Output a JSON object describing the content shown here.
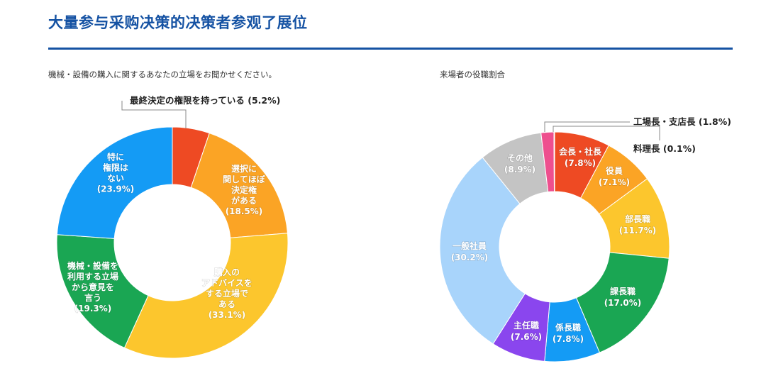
{
  "header": {
    "title": "大量参与采购决策的决策者参观了展位"
  },
  "chart_data": [
    {
      "type": "pie",
      "title": "機械・設備の購入に関するあなたの立場をお聞かせください。",
      "slices": [
        {
          "label": "最終決定の権限を持っている",
          "value": 5.2,
          "value_text": "(5.2%)",
          "label_lines": [
            "最終決定の権限を持っている (5.2%)"
          ],
          "color": "#ee4a23",
          "callout": true
        },
        {
          "label": "選択に関してほぼ決定権がある",
          "value": 18.5,
          "value_text": "(18.5%)",
          "label_lines": [
            "選択に",
            "関してほぼ",
            "決定権",
            "がある",
            "(18.5%)"
          ],
          "color": "#fba425"
        },
        {
          "label": "購入のアドバイスをする立場である",
          "value": 33.1,
          "value_text": "(33.1%)",
          "label_lines": [
            "購入の",
            "アドバイスを",
            "する立場で",
            "ある",
            "(33.1%)"
          ],
          "color": "#fcc62d"
        },
        {
          "label": "機械・設備を利用する立場から意見を言う",
          "value": 19.3,
          "value_text": "(19.3%)",
          "label_lines": [
            "機械・設備を",
            "利用する立場",
            "から意見を",
            "言う",
            "(19.3%)"
          ],
          "color": "#1aa653"
        },
        {
          "label": "特に権限はない",
          "value": 23.9,
          "value_text": "(23.9%)",
          "label_lines": [
            "特に",
            "権限は",
            "ない",
            "(23.9%)"
          ],
          "color": "#149bf5"
        }
      ]
    },
    {
      "type": "pie",
      "title": "来場者の役職割合",
      "slices": [
        {
          "label": "会長・社長",
          "value": 7.8,
          "value_text": "(7.8%)",
          "label_lines": [
            "会長・社長",
            "(7.8%)"
          ],
          "color": "#ee4a23"
        },
        {
          "label": "役員",
          "value": 7.1,
          "value_text": "(7.1%)",
          "label_lines": [
            "役員",
            "(7.1%)"
          ],
          "color": "#fba425"
        },
        {
          "label": "部長職",
          "value": 11.7,
          "value_text": "(11.7%)",
          "label_lines": [
            "部長職",
            "(11.7%)"
          ],
          "color": "#fcc62d"
        },
        {
          "label": "課長職",
          "value": 17.0,
          "value_text": "(17.0%)",
          "label_lines": [
            "課長職",
            "(17.0%)"
          ],
          "color": "#1aa653"
        },
        {
          "label": "係長職",
          "value": 7.8,
          "value_text": "(7.8%)",
          "label_lines": [
            "係長職",
            "(7.8%)"
          ],
          "color": "#149bf5"
        },
        {
          "label": "主任職",
          "value": 7.6,
          "value_text": "(7.6%)",
          "label_lines": [
            "主任職",
            "(7.6%)"
          ],
          "color": "#8a46ee"
        },
        {
          "label": "一般社員",
          "value": 30.2,
          "value_text": "(30.2%)",
          "label_lines": [
            "一般社員",
            "(30.2%)"
          ],
          "color": "#a8d4fb"
        },
        {
          "label": "その他",
          "value": 8.9,
          "value_text": "(8.9%)",
          "label_lines": [
            "その他",
            "(8.9%)"
          ],
          "color": "#c4c4c4"
        },
        {
          "label": "工場長・支店長",
          "value": 1.8,
          "value_text": "(1.8%)",
          "label_lines": [
            "工場長・支店長 (1.8%)"
          ],
          "color": "#ee4f8e",
          "callout": true
        },
        {
          "label": "料理長",
          "value": 0.1,
          "value_text": "(0.1%)",
          "label_lines": [
            "料理長 (0.1%)"
          ],
          "color": "#ff8a8a",
          "callout": true
        }
      ]
    }
  ]
}
